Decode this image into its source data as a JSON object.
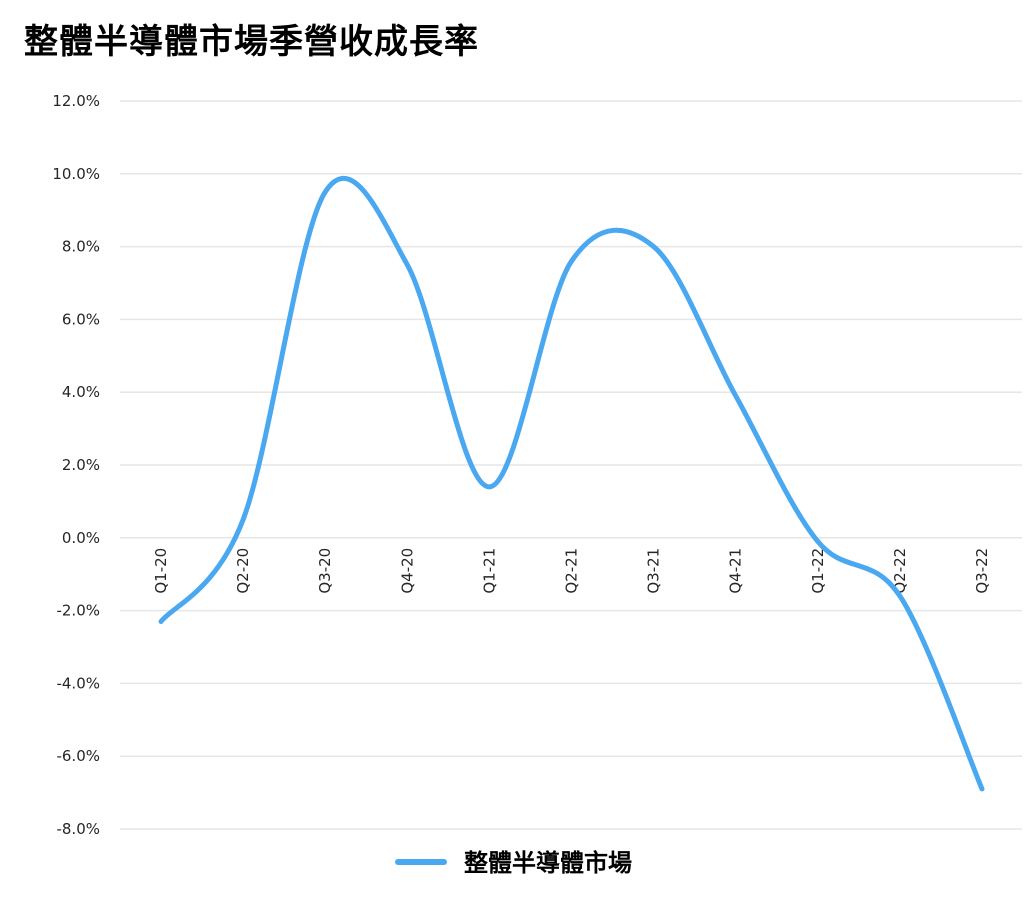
{
  "chart_data": {
    "type": "line",
    "title": "整體半導體市場季營收成長率",
    "xlabel": "",
    "ylabel": "",
    "categories": [
      "Q1-20",
      "Q2-20",
      "Q3-20",
      "Q4-20",
      "Q1-21",
      "Q2-21",
      "Q3-21",
      "Q4-21",
      "Q1-22",
      "Q2-22",
      "Q3-22"
    ],
    "series": [
      {
        "name": "整體半導體市場",
        "values": [
          -2.3,
          0.5,
          9.5,
          7.5,
          1.4,
          7.6,
          8.0,
          3.9,
          -0.1,
          -1.6,
          -6.9
        ],
        "color": "#4aa8f0"
      }
    ],
    "ylim": [
      -8.0,
      12.0
    ],
    "yticks": [
      -8.0,
      -6.0,
      -4.0,
      -2.0,
      0.0,
      2.0,
      4.0,
      6.0,
      8.0,
      10.0,
      12.0
    ],
    "ytick_labels": [
      "-8.0%",
      "-6.0%",
      "-4.0%",
      "-2.0%",
      "0.0%",
      "2.0%",
      "4.0%",
      "6.0%",
      "8.0%",
      "10.0%",
      "12.0%"
    ],
    "grid": true,
    "smooth": true,
    "legend": "bottom",
    "gridline_color": "#e6e6e6"
  }
}
